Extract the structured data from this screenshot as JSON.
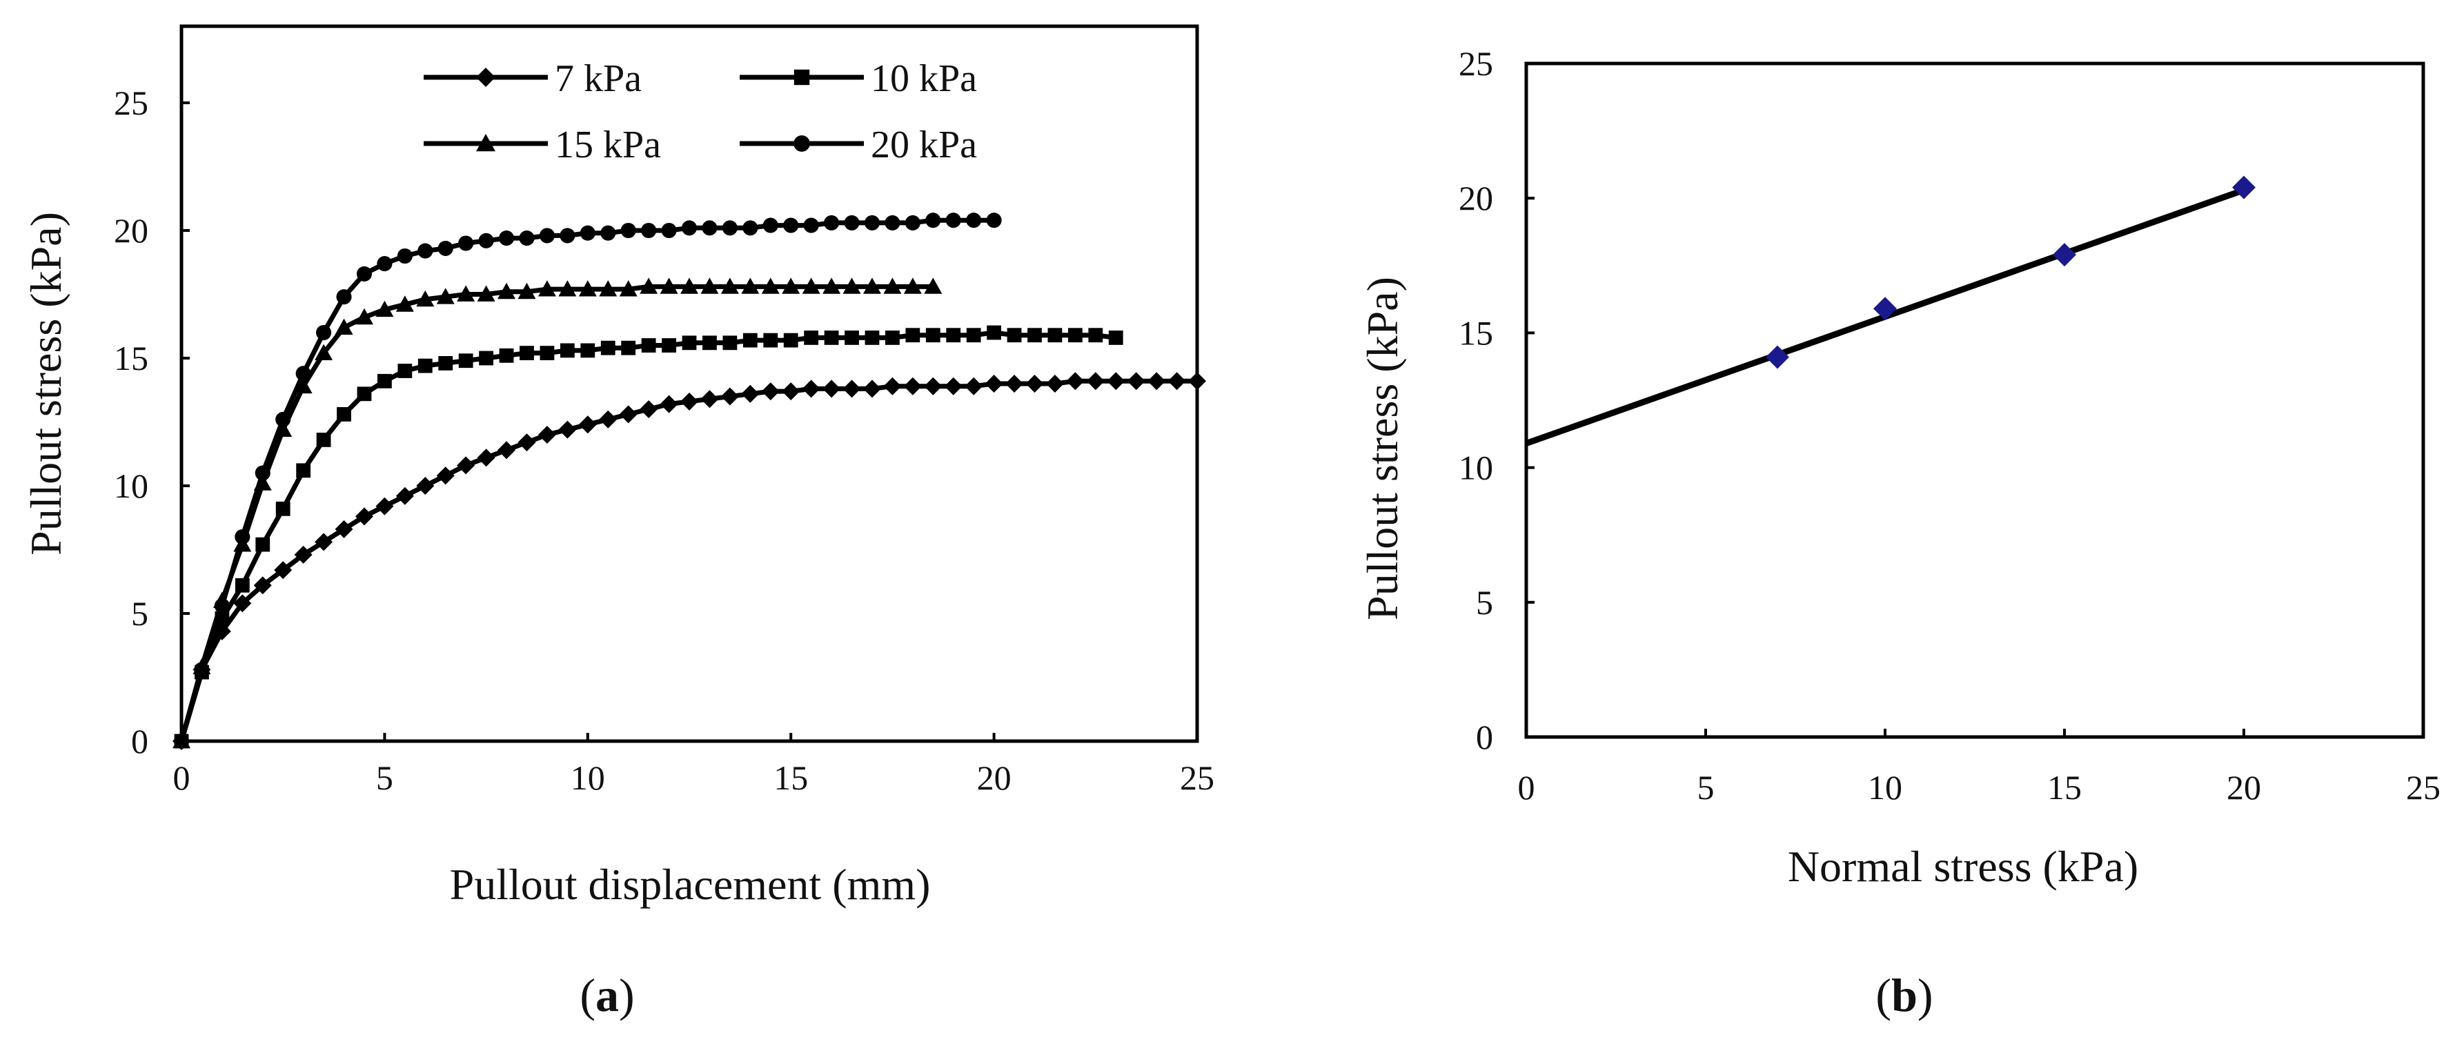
{
  "chart_data": [
    {
      "type": "line",
      "panel_label": {
        "open": "(",
        "letter": "a",
        "close": ")"
      },
      "xlabel": "Pullout displacement (mm)",
      "ylabel": "Pullout stress (kPa)",
      "xlim": [
        0,
        25
      ],
      "ylim": [
        0,
        28
      ],
      "xticks": [
        "0",
        "5",
        "10",
        "15",
        "20",
        "25"
      ],
      "yticks": [
        "0",
        "5",
        "10",
        "15",
        "20",
        "25"
      ],
      "legend_position": "top",
      "series": [
        {
          "name": "7 kPa",
          "marker": "diamond",
          "x": [
            0,
            0.5,
            1,
            1.5,
            2,
            2.5,
            3,
            3.5,
            4,
            4.5,
            5,
            5.5,
            6,
            6.5,
            7,
            7.5,
            8,
            8.5,
            9,
            9.5,
            10,
            10.5,
            11,
            11.5,
            12,
            12.5,
            13,
            13.5,
            14,
            14.5,
            15,
            15.5,
            16,
            16.5,
            17,
            17.5,
            18,
            18.5,
            19,
            19.5,
            20,
            20.5,
            21,
            21.5,
            22,
            22.5,
            23,
            23.5,
            24,
            24.5,
            25
          ],
          "y": [
            0,
            2.8,
            4.3,
            5.4,
            6.1,
            6.7,
            7.3,
            7.8,
            8.3,
            8.8,
            9.2,
            9.6,
            10.0,
            10.4,
            10.8,
            11.1,
            11.4,
            11.7,
            12.0,
            12.2,
            12.4,
            12.6,
            12.8,
            13.0,
            13.2,
            13.3,
            13.4,
            13.5,
            13.6,
            13.7,
            13.7,
            13.8,
            13.8,
            13.8,
            13.8,
            13.9,
            13.9,
            13.9,
            13.9,
            13.9,
            14.0,
            14.0,
            14.0,
            14.0,
            14.1,
            14.1,
            14.1,
            14.1,
            14.1,
            14.1,
            14.1
          ]
        },
        {
          "name": "10 kPa",
          "marker": "square",
          "x": [
            0,
            0.5,
            1,
            1.5,
            2,
            2.5,
            3,
            3.5,
            4,
            4.5,
            5,
            5.5,
            6,
            6.5,
            7,
            7.5,
            8,
            8.5,
            9,
            9.5,
            10,
            10.5,
            11,
            11.5,
            12,
            12.5,
            13,
            13.5,
            14,
            14.5,
            15,
            15.5,
            16,
            16.5,
            17,
            17.5,
            18,
            18.5,
            19,
            19.5,
            20,
            20.5,
            21,
            21.5,
            22,
            22.5,
            23
          ],
          "y": [
            0,
            2.7,
            4.8,
            6.1,
            7.7,
            9.1,
            10.6,
            11.8,
            12.8,
            13.6,
            14.1,
            14.5,
            14.7,
            14.8,
            14.9,
            15.0,
            15.1,
            15.2,
            15.2,
            15.3,
            15.3,
            15.4,
            15.4,
            15.5,
            15.5,
            15.6,
            15.6,
            15.6,
            15.7,
            15.7,
            15.7,
            15.8,
            15.8,
            15.8,
            15.8,
            15.8,
            15.9,
            15.9,
            15.9,
            15.9,
            16.0,
            15.9,
            15.9,
            15.9,
            15.9,
            15.9,
            15.8
          ]
        },
        {
          "name": "15 kPa",
          "marker": "triangle",
          "x": [
            0,
            0.5,
            1,
            1.5,
            2,
            2.5,
            3,
            3.5,
            4,
            4.5,
            5,
            5.5,
            6,
            6.5,
            7,
            7.5,
            8,
            8.5,
            9,
            9.5,
            10,
            10.5,
            11,
            11.5,
            12,
            12.5,
            13,
            13.5,
            14,
            14.5,
            15,
            15.5,
            16,
            16.5,
            17,
            17.5,
            18,
            18.5
          ],
          "y": [
            0,
            2.9,
            5.5,
            7.7,
            10.1,
            12.2,
            13.9,
            15.2,
            16.2,
            16.6,
            16.9,
            17.1,
            17.3,
            17.4,
            17.5,
            17.5,
            17.6,
            17.6,
            17.7,
            17.7,
            17.7,
            17.7,
            17.7,
            17.8,
            17.8,
            17.8,
            17.8,
            17.8,
            17.8,
            17.8,
            17.8,
            17.8,
            17.8,
            17.8,
            17.8,
            17.8,
            17.8,
            17.8
          ]
        },
        {
          "name": "20 kPa",
          "marker": "circle",
          "x": [
            0,
            0.5,
            1,
            1.5,
            2,
            2.5,
            3,
            3.5,
            4,
            4.5,
            5,
            5.5,
            6,
            6.5,
            7,
            7.5,
            8,
            8.5,
            9,
            9.5,
            10,
            10.5,
            11,
            11.5,
            12,
            12.5,
            13,
            13.5,
            14,
            14.5,
            15,
            15.5,
            16,
            16.5,
            17,
            17.5,
            18,
            18.5,
            19,
            19.5,
            20
          ],
          "y": [
            0,
            2.8,
            5.3,
            8.0,
            10.5,
            12.6,
            14.4,
            16.0,
            17.4,
            18.3,
            18.7,
            19.0,
            19.2,
            19.3,
            19.5,
            19.6,
            19.7,
            19.7,
            19.8,
            19.8,
            19.9,
            19.9,
            20.0,
            20.0,
            20.0,
            20.1,
            20.1,
            20.1,
            20.1,
            20.2,
            20.2,
            20.2,
            20.3,
            20.3,
            20.3,
            20.3,
            20.3,
            20.4,
            20.4,
            20.4,
            20.4
          ]
        }
      ]
    },
    {
      "type": "scatter",
      "panel_label": {
        "open": "(",
        "letter": "b",
        "close": ")"
      },
      "xlabel": "Normal stress (kPa)",
      "ylabel": "Pullout stress (kPa)",
      "xlim": [
        0,
        25
      ],
      "ylim": [
        0,
        25
      ],
      "xticks": [
        "0",
        "5",
        "10",
        "15",
        "20",
        "25"
      ],
      "yticks": [
        "0",
        "5",
        "10",
        "15",
        "20",
        "25"
      ],
      "points": {
        "x": [
          7,
          10,
          15,
          20
        ],
        "y": [
          14.1,
          15.9,
          17.9,
          20.4
        ]
      },
      "marker_color": "#1a1a8c",
      "fit_line": {
        "x": [
          0,
          20
        ],
        "y": [
          10.9,
          20.3
        ]
      }
    }
  ]
}
